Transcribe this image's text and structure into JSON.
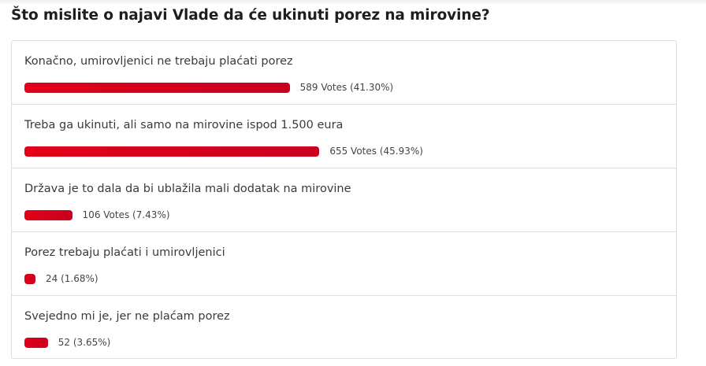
{
  "poll": {
    "question": "Što mislite o najavi Vlade da će ukinuti porez na mirovine?",
    "bar_color": "#d9001b",
    "options": [
      {
        "label": "Konačno, umirovljenici ne trebaju plaćati porez",
        "result": "589 Votes (41.30%)",
        "percent": 41.3
      },
      {
        "label": "Treba ga ukinuti, ali samo na mirovine ispod 1.500 eura",
        "result": "655 Votes (45.93%)",
        "percent": 45.93
      },
      {
        "label": "Država je to dala da bi ublažila mali dodatak na mirovine",
        "result": "106 Votes (7.43%)",
        "percent": 7.43
      },
      {
        "label": "Porez trebaju plaćati i umirovljenici",
        "result": "24 (1.68%)",
        "percent": 1.68
      },
      {
        "label": "Svejedno mi je, jer ne plaćam porez",
        "result": "52 (3.65%)",
        "percent": 3.65
      }
    ]
  }
}
